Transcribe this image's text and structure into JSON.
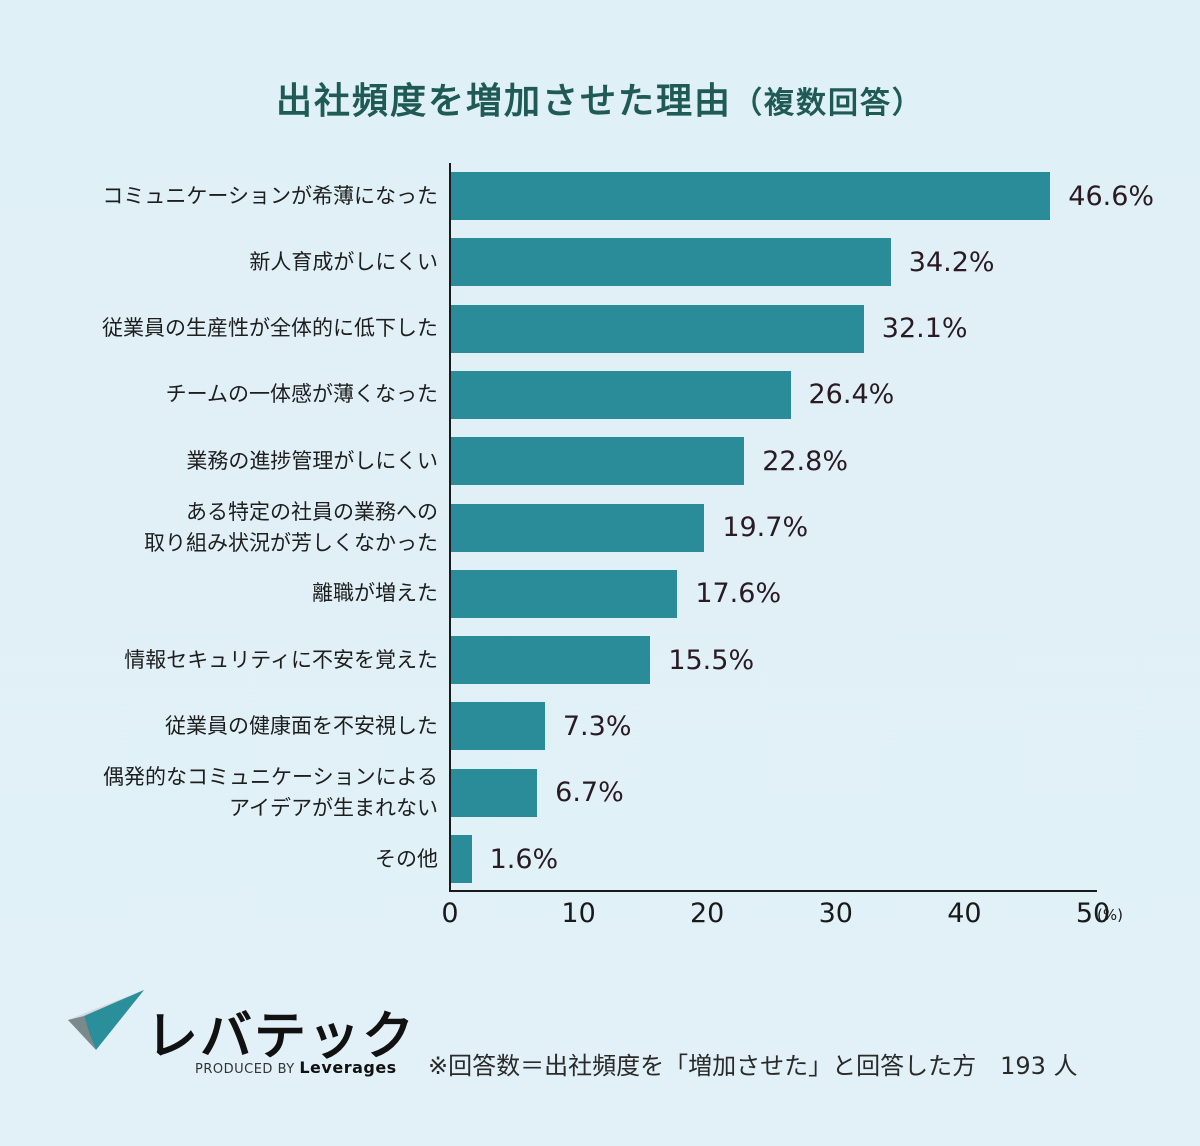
{
  "title": {
    "main": "出社頻度を増加させた理由",
    "sub": "（複数回答）"
  },
  "chart_data": {
    "type": "bar",
    "orientation": "horizontal",
    "title": "出社頻度を増加させた理由（複数回答）",
    "categories": [
      "コミュニケーションが希薄になった",
      "新人育成がしにくい",
      "従業員の生産性が全体的に低下した",
      "チームの一体感が薄くなった",
      "業務の進捗管理がしにくい",
      "ある特定の社員の業務への\n取り組み状況が芳しくなかった",
      "離職が増えた",
      "情報セキュリティに不安を覚えた",
      "従業員の健康面を不安視した",
      "偶発的なコミュニケーションによる\nアイデアが生まれない",
      "その他"
    ],
    "values": [
      46.6,
      34.2,
      32.1,
      26.4,
      22.8,
      19.7,
      17.6,
      15.5,
      7.3,
      6.7,
      1.6
    ],
    "value_labels": [
      "46.6%",
      "34.2%",
      "32.1%",
      "26.4%",
      "22.8%",
      "19.7%",
      "17.6%",
      "15.5%",
      "7.3%",
      "6.7%",
      "1.6%"
    ],
    "xlabel": "(%)",
    "ylabel": "",
    "xlim": [
      0,
      50
    ],
    "x_ticks": [
      "0",
      "10",
      "20",
      "30",
      "40",
      "50"
    ],
    "grid": false,
    "legend": null,
    "bar_color": "#2a8b99"
  },
  "axis": {
    "unit": "(%)"
  },
  "logo": {
    "name": "レバテック",
    "produced_by": "PRODUCED BY",
    "brand": "Leverages"
  },
  "footnote": "※回答数＝出社頻度を「増加させた」と回答した方　193 人",
  "colors": {
    "title": "#1f5a55",
    "bar": "#2a8b99",
    "background": "#dff0f6"
  }
}
